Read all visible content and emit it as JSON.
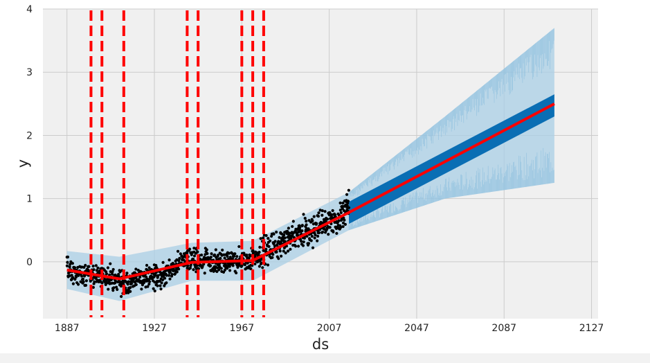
{
  "chart_data": {
    "type": "line",
    "title": "",
    "xlabel": "ds",
    "ylabel": "y",
    "xlim": [
      1876,
      2130
    ],
    "ylim": [
      -0.9,
      4.0
    ],
    "x_ticks": [
      1887,
      1927,
      1967,
      2007,
      2047,
      2087,
      2127
    ],
    "x_tick_labels": [
      "1887",
      "1927",
      "1967",
      "2007",
      "2047",
      "2087",
      "2127"
    ],
    "y_ticks": [
      0,
      1,
      2,
      3,
      4
    ],
    "y_tick_labels": [
      "0",
      "1",
      "2",
      "3",
      "4"
    ],
    "grid": true,
    "history_end": 2016,
    "forecast_end": 2110,
    "series": [
      {
        "name": "",
        "kind": "trend",
        "x": [
          1887,
          1911,
          1944,
          1972,
          2016,
          2110
        ],
        "y": [
          -0.13,
          -0.27,
          -0.01,
          0.02,
          0.78,
          2.5
        ]
      },
      {
        "name": "",
        "kind": "observations",
        "x": [
          1887,
          1897,
          1907,
          1912,
          1922,
          1932,
          1942,
          1952,
          1962,
          1972,
          1982,
          1992,
          2002,
          2012,
          2016
        ],
        "y": [
          -0.13,
          -0.2,
          -0.25,
          -0.35,
          -0.25,
          -0.2,
          0.05,
          0.0,
          0.0,
          0.05,
          0.25,
          0.4,
          0.55,
          0.68,
          0.95
        ]
      },
      {
        "name": "",
        "kind": "uncertainty_band",
        "x": [
          1887,
          1911,
          1944,
          1972,
          2016,
          2060,
          2110
        ],
        "lower": [
          -0.43,
          -0.62,
          -0.3,
          -0.3,
          0.5,
          1.0,
          1.25
        ],
        "upper": [
          0.17,
          0.08,
          0.3,
          0.33,
          1.1,
          2.3,
          3.7
        ]
      },
      {
        "name": "",
        "kind": "yhat_band",
        "x": [
          2016,
          2110
        ],
        "lower": [
          0.6,
          2.3
        ],
        "upper": [
          0.95,
          2.65
        ]
      }
    ],
    "changepoints": [
      1898,
      1903,
      1913,
      1942,
      1947,
      1967,
      1972,
      1977
    ],
    "colors": {
      "background": "#f0f0f0",
      "grid": "#cbcbcb",
      "points": "#000000",
      "trend": "#ff0000",
      "changepoint": "#ff0000",
      "uncertainty": "#a9cfe6",
      "yhat_band": "#0a6eb4"
    }
  }
}
